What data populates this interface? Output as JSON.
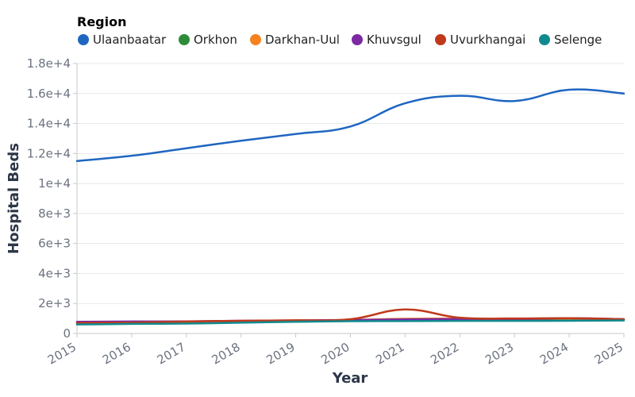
{
  "chart_data": {
    "type": "line",
    "title": "",
    "xlabel": "Year",
    "ylabel": "Hospital Beds",
    "legend_title": "Region",
    "legend_position": "top-left",
    "grid": true,
    "x": [
      2015,
      2016,
      2017,
      2018,
      2019,
      2020,
      2021,
      2022,
      2023,
      2024,
      2025
    ],
    "xlim": [
      2015,
      2025
    ],
    "ylim": [
      0,
      18000
    ],
    "y_ticks": [
      {
        "value": 0,
        "label": "0"
      },
      {
        "value": 2000,
        "label": "2e+3"
      },
      {
        "value": 4000,
        "label": "4e+3"
      },
      {
        "value": 6000,
        "label": "6e+3"
      },
      {
        "value": 8000,
        "label": "8e+3"
      },
      {
        "value": 10000,
        "label": "1e+4"
      },
      {
        "value": 12000,
        "label": "1.2e+4"
      },
      {
        "value": 14000,
        "label": "1.4e+4"
      },
      {
        "value": 16000,
        "label": "1.6e+4"
      },
      {
        "value": 18000,
        "label": "1.8e+4"
      }
    ],
    "series": [
      {
        "name": "Ulaanbaatar",
        "color": "#1f66c1",
        "values": [
          11500,
          11850,
          12350,
          12850,
          13300,
          13800,
          15350,
          15850,
          15500,
          16250,
          16000
        ]
      },
      {
        "name": "Orkhon",
        "color": "#2e8b3a",
        "values": [
          650,
          680,
          700,
          760,
          790,
          840,
          870,
          880,
          870,
          880,
          900
        ]
      },
      {
        "name": "Darkhan-Uul",
        "color": "#f5821f",
        "values": [
          720,
          760,
          790,
          830,
          850,
          900,
          980,
          1000,
          970,
          1000,
          950
        ]
      },
      {
        "name": "Khuvsgul",
        "color": "#7b2aa3",
        "values": [
          780,
          800,
          810,
          850,
          870,
          900,
          940,
          960,
          950,
          1020,
          950
        ]
      },
      {
        "name": "Uvurkhangai",
        "color": "#c0391b",
        "values": [
          700,
          730,
          800,
          850,
          880,
          950,
          1600,
          1050,
          1000,
          1020,
          950
        ]
      },
      {
        "name": "Selenge",
        "color": "#108a8f",
        "values": [
          600,
          640,
          660,
          720,
          780,
          820,
          830,
          840,
          840,
          850,
          870
        ]
      }
    ]
  }
}
